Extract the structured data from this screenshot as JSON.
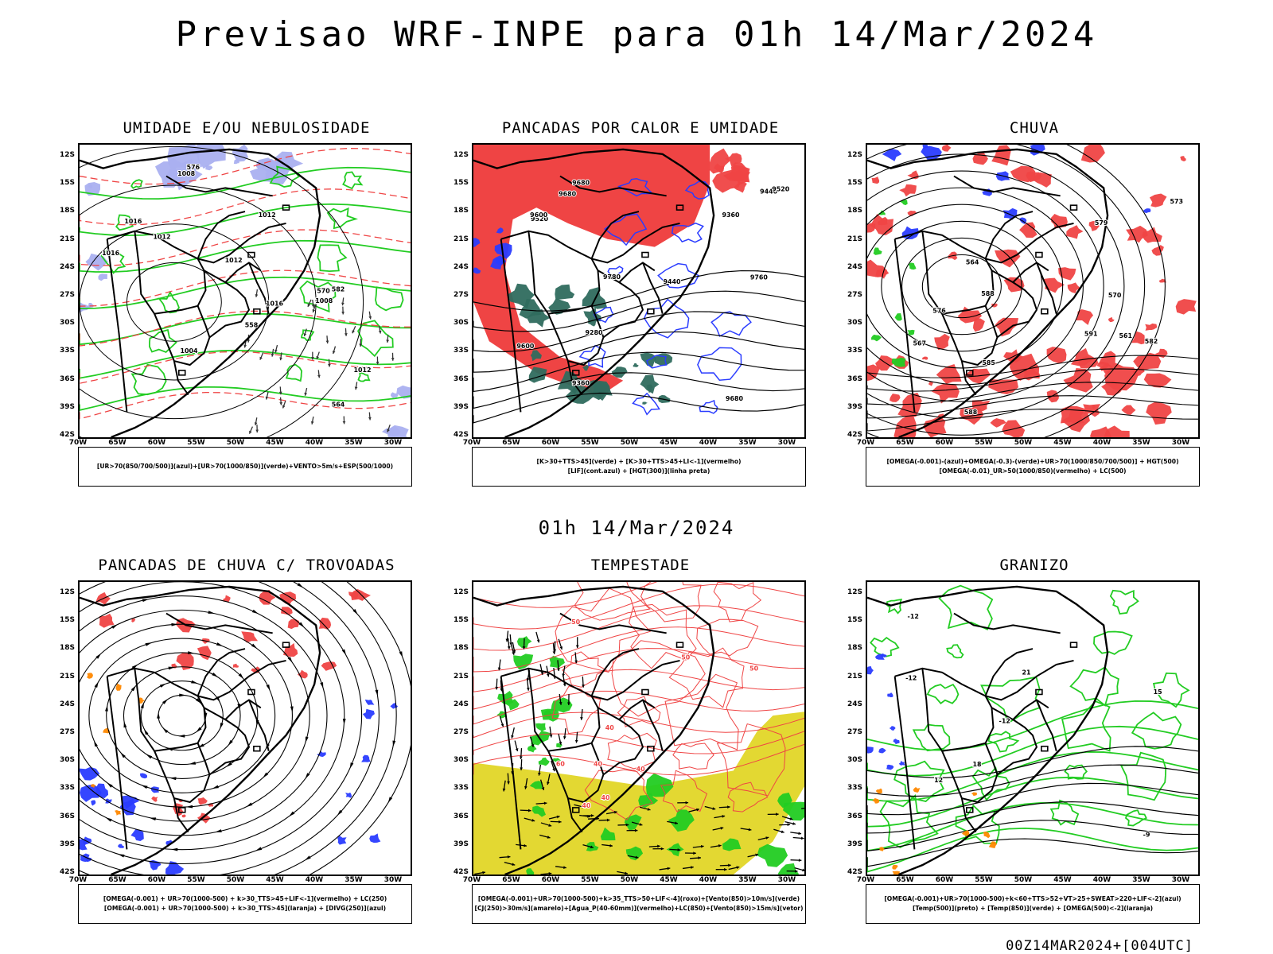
{
  "page": {
    "title": "Previsao WRF-INPE  para 01h 14/Mar/2024",
    "mid_title": "01h 14/Mar/2024",
    "footer": "00Z14MAR2024+[004UTC]"
  },
  "axes": {
    "lat_ticks": [
      "12S",
      "15S",
      "18S",
      "21S",
      "24S",
      "27S",
      "30S",
      "33S",
      "36S",
      "39S",
      "42S"
    ],
    "lon_ticks": [
      "70W",
      "65W",
      "60W",
      "55W",
      "50W",
      "45W",
      "40W",
      "35W",
      "30W"
    ]
  },
  "colors": {
    "red": "#ef4444",
    "green": "#22cc22",
    "blue": "#2a3cff",
    "lightblue": "#aab0f0",
    "teal": "#2f6b5e",
    "yellow": "#e3d832",
    "orange": "#ff8800",
    "black": "#000000"
  },
  "panels": [
    {
      "id": "umidade",
      "title": "UMIDADE E/OU NEBULOSIDADE",
      "legend": [
        "[UR>70(850/700/500)](azul)+[UR>70(1000/850)](verde)+VENTO>5m/s+ESP(500/1000)"
      ],
      "contour_labels": [
        "1012",
        "1016",
        "1012",
        "1008",
        "1004",
        "1012",
        "1016",
        "1016",
        "1012",
        "1008",
        "576",
        "570",
        "564",
        "582",
        "558"
      ]
    },
    {
      "id": "pancadas-calor",
      "title": "PANCADAS POR CALOR E UMIDADE",
      "legend": [
        "[K>30+TTS>45](verde) + [K>30+TTS>45+LI<-1](vermelho)",
        "[LIF](cont.azul) + [HGT(300)](linha preta)"
      ],
      "contour_labels": [
        "9680",
        "9760",
        "9780",
        "9680",
        "9600",
        "9520",
        "9440",
        "9360",
        "9280",
        "9440",
        "9360",
        "9680",
        "9600",
        "9520"
      ]
    },
    {
      "id": "chuva",
      "title": "CHUVA",
      "legend": [
        "[OMEGA(-0.001)-(azul)+OMEGA(-0.3)-(verde)+UR>70(1000/850/700/500)] + HGT(500)",
        "[OMEGA(-0.01)_UR>50(1000/850)(vermelho) + LC(500)"
      ],
      "contour_labels": [
        "588",
        "591",
        "588",
        "585",
        "582",
        "579",
        "576",
        "573",
        "570",
        "567",
        "564",
        "561"
      ]
    },
    {
      "id": "pancadas-trovoadas",
      "title": "PANCADAS DE CHUVA C/ TROVOADAS",
      "legend": [
        "[OMEGA(-0.001) + UR>70(1000-500) + k>30_TTS>45+LIF<-1](vermelho) + LC(250)",
        "[OMEGA(-0.001) + UR>70(1000-500) + k>30_TTS>45](laranja) + [DIVG(250)](azul)"
      ],
      "contour_labels": []
    },
    {
      "id": "tempestade",
      "title": "TEMPESTADE",
      "legend": [
        "[OMEGA(-0.001)+UR>70(1000-500)+k>35_TTS>50+LIF<-4](roxo)+[Vento(850)>10m/s](verde)",
        "[CJ(250)>30m/s](amarelo)+[Agua_P(40-60mm)](vermelho)+LC(850)+[Vento(850)>15m/s](vetor)"
      ],
      "contour_labels": [
        "40",
        "50",
        "60",
        "40",
        "40",
        "50",
        "40",
        "40",
        "50"
      ]
    },
    {
      "id": "granizo",
      "title": "GRANIZO",
      "legend": [
        "[OMEGA(-0.001)+UR>70(1000-500)+k<60+TTS>52+VT>25+SWEAT>220+LIF<-2](azul)",
        "[Temp(500)](preto) + [Temp(850)](verde) + [OMEGA(500)<-2](laranja)"
      ],
      "contour_labels": [
        "-12",
        "-12",
        "12",
        "15",
        "18",
        "21",
        "-9",
        "-12"
      ]
    }
  ]
}
